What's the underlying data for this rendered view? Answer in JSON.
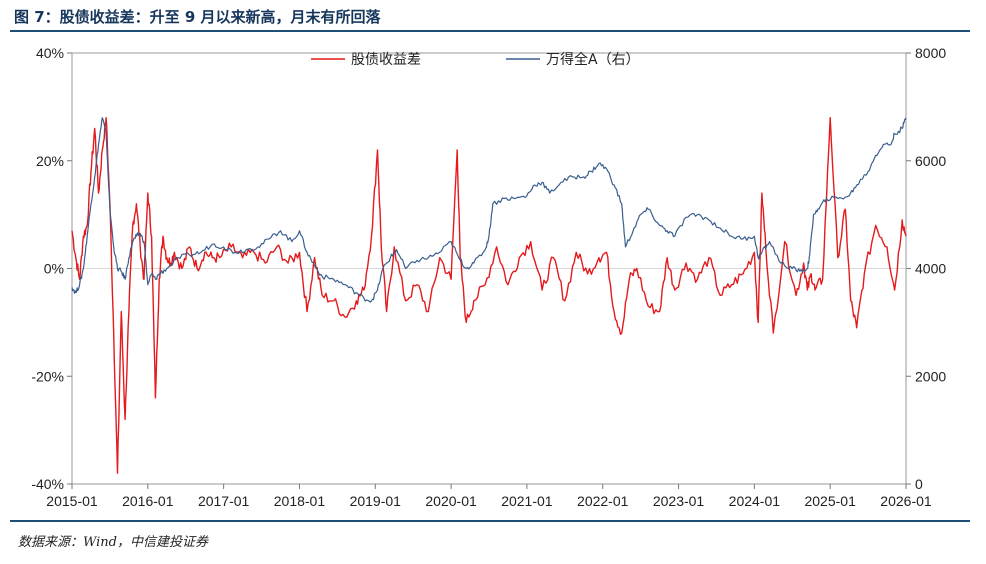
{
  "header": {
    "title": "图 7：股债收益差：升至 9 月以来新高，月末有所回落"
  },
  "footer": {
    "source": "数据来源：Wind，中信建投证券"
  },
  "colors": {
    "spread": "#e41a1c",
    "index": "#3a5f8f",
    "rule": "#1f4e79",
    "zero_line": "#d9d9d9"
  },
  "chart_data": {
    "type": "line",
    "title": "股债收益差：升至 9 月以来新高，月末有所回落",
    "x_unit": "year-fraction",
    "xlim": [
      2015.0,
      2026.0
    ],
    "x_ticks": [
      2015,
      2016,
      2017,
      2018,
      2019,
      2020,
      2021,
      2022,
      2023,
      2024,
      2025,
      2026
    ],
    "x_tick_labels": [
      "2015-01",
      "2016-01",
      "2017-01",
      "2018-01",
      "2019-01",
      "2020-01",
      "2021-01",
      "2022-01",
      "2023-01",
      "2024-01",
      "2025-01",
      "2026-01"
    ],
    "y_left": {
      "label": "股债收益差",
      "unit": "%",
      "ylim": [
        -40,
        40
      ],
      "ticks": [
        -40,
        -20,
        0,
        20,
        40
      ],
      "tick_labels": [
        "-40%",
        "-20%",
        "0%",
        "20%",
        "40%"
      ]
    },
    "y_right": {
      "label": "万得全A（右）",
      "ylim": [
        0,
        8000
      ],
      "ticks": [
        0,
        2000,
        4000,
        6000,
        8000
      ],
      "tick_labels": [
        "0",
        "2000",
        "4000",
        "6000",
        "8000"
      ]
    },
    "legend": {
      "position": "top-center",
      "entries": [
        "股债收益差",
        "万得全A（右）"
      ]
    },
    "series": [
      {
        "name": "股债收益差",
        "axis": "left",
        "x": [
          2015.0,
          2015.05,
          2015.1,
          2015.15,
          2015.2,
          2015.25,
          2015.3,
          2015.35,
          2015.4,
          2015.45,
          2015.5,
          2015.55,
          2015.6,
          2015.65,
          2015.7,
          2015.75,
          2015.8,
          2015.85,
          2015.9,
          2015.95,
          2016.0,
          2016.05,
          2016.1,
          2016.15,
          2016.2,
          2016.25,
          2016.3,
          2016.35,
          2016.45,
          2016.55,
          2016.65,
          2016.75,
          2016.85,
          2016.95,
          2017.1,
          2017.25,
          2017.4,
          2017.55,
          2017.7,
          2017.85,
          2018.0,
          2018.1,
          2018.2,
          2018.3,
          2018.45,
          2018.6,
          2018.75,
          2018.85,
          2018.95,
          2019.03,
          2019.08,
          2019.15,
          2019.25,
          2019.4,
          2019.55,
          2019.7,
          2019.85,
          2020.0,
          2020.08,
          2020.12,
          2020.2,
          2020.3,
          2020.45,
          2020.6,
          2020.75,
          2020.9,
          2021.05,
          2021.2,
          2021.35,
          2021.5,
          2021.65,
          2021.8,
          2021.95,
          2022.05,
          2022.15,
          2022.25,
          2022.35,
          2022.45,
          2022.6,
          2022.75,
          2022.85,
          2022.95,
          2023.1,
          2023.25,
          2023.4,
          2023.55,
          2023.7,
          2023.85,
          2024.0,
          2024.05,
          2024.1,
          2024.15,
          2024.25,
          2024.4,
          2024.55,
          2024.65,
          2024.7,
          2024.75,
          2024.8,
          2024.9,
          2025.0,
          2025.1,
          2025.2,
          2025.27,
          2025.35,
          2025.45,
          2025.6,
          2025.75,
          2025.85,
          2025.95,
          2026.0
        ],
        "values": [
          7,
          2,
          -2,
          6,
          8,
          18,
          26,
          14,
          22,
          28,
          12,
          -12,
          -38,
          -8,
          -28,
          -8,
          8,
          12,
          4,
          -2,
          14,
          6,
          -24,
          -2,
          6,
          2,
          1,
          3,
          0,
          4,
          0,
          3,
          2,
          2,
          4,
          2,
          3,
          1,
          4,
          1,
          3,
          -8,
          2,
          -5,
          -6,
          -9,
          -6,
          -4,
          6,
          22,
          4,
          -8,
          4,
          -6,
          -3,
          -8,
          2,
          -2,
          22,
          2,
          -10,
          -6,
          -3,
          4,
          -3,
          2,
          5,
          -4,
          2,
          -6,
          3,
          -1,
          2,
          3,
          -8,
          -12,
          -2,
          0,
          -7,
          -8,
          2,
          -4,
          1,
          -2,
          2,
          -5,
          -3,
          -1,
          3,
          -10,
          14,
          4,
          -12,
          5,
          -5,
          1,
          -4,
          -1,
          -4,
          -2,
          28,
          2,
          11,
          -6,
          -11,
          -1,
          8,
          4,
          -4,
          9,
          6
        ]
      },
      {
        "name": "万得全A（右）",
        "axis": "right",
        "x": [
          2015.0,
          2015.05,
          2015.1,
          2015.15,
          2015.2,
          2015.25,
          2015.3,
          2015.35,
          2015.4,
          2015.45,
          2015.5,
          2015.55,
          2015.6,
          2015.65,
          2015.7,
          2015.75,
          2015.8,
          2015.85,
          2015.9,
          2015.95,
          2016.0,
          2016.05,
          2016.1,
          2016.15,
          2016.25,
          2016.4,
          2016.55,
          2016.7,
          2016.85,
          2017.0,
          2017.15,
          2017.3,
          2017.45,
          2017.6,
          2017.75,
          2017.9,
          2018.0,
          2018.1,
          2018.2,
          2018.3,
          2018.45,
          2018.6,
          2018.75,
          2018.85,
          2018.95,
          2019.03,
          2019.1,
          2019.2,
          2019.28,
          2019.4,
          2019.55,
          2019.7,
          2019.85,
          2020.0,
          2020.1,
          2020.2,
          2020.3,
          2020.45,
          2020.5,
          2020.55,
          2020.7,
          2020.85,
          2021.0,
          2021.1,
          2021.2,
          2021.3,
          2021.45,
          2021.6,
          2021.75,
          2021.85,
          2021.95,
          2022.05,
          2022.15,
          2022.25,
          2022.3,
          2022.4,
          2022.5,
          2022.6,
          2022.75,
          2022.85,
          2022.95,
          2023.1,
          2023.25,
          2023.4,
          2023.55,
          2023.7,
          2023.85,
          2024.0,
          2024.05,
          2024.1,
          2024.2,
          2024.35,
          2024.5,
          2024.6,
          2024.7,
          2024.73,
          2024.78,
          2024.85,
          2024.95,
          2025.1,
          2025.25,
          2025.35,
          2025.5,
          2025.6,
          2025.7,
          2025.8,
          2025.85,
          2025.95,
          2026.0
        ],
        "values": [
          3650,
          3550,
          3700,
          4000,
          4600,
          5200,
          5700,
          6300,
          6800,
          6500,
          5100,
          4400,
          4000,
          3950,
          3800,
          4200,
          4500,
          4600,
          4650,
          4500,
          3700,
          3900,
          3800,
          3900,
          4000,
          4200,
          4250,
          4300,
          4450,
          4400,
          4300,
          4350,
          4400,
          4550,
          4700,
          4500,
          4700,
          4300,
          4050,
          3850,
          3800,
          3700,
          3550,
          3450,
          3400,
          3600,
          4000,
          4200,
          4350,
          4000,
          4150,
          4200,
          4300,
          4500,
          4200,
          4000,
          4100,
          4350,
          4600,
          5200,
          5300,
          5300,
          5350,
          5550,
          5600,
          5400,
          5600,
          5700,
          5700,
          5800,
          5950,
          5850,
          5550,
          5200,
          4400,
          4700,
          5000,
          5100,
          4800,
          4700,
          4600,
          4950,
          5000,
          4900,
          4750,
          4600,
          4550,
          4600,
          4200,
          4300,
          4500,
          4100,
          4000,
          3950,
          4000,
          4250,
          5000,
          5100,
          5300,
          5300,
          5350,
          5550,
          5800,
          6100,
          6300,
          6300,
          6500,
          6600,
          6800
        ]
      }
    ]
  }
}
